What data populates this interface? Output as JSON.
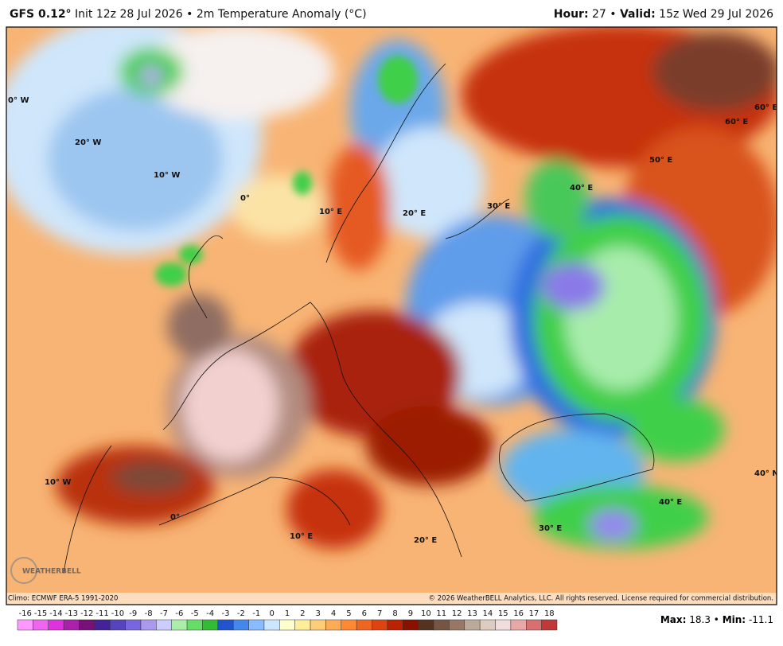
{
  "header": {
    "model": "GFS 0.12°",
    "info": "Init 12z 28 Jul 2026 • 2m Temperature Anomaly (°C)",
    "hour_label": "Hour:",
    "hour": "27 •",
    "valid_label": "Valid:",
    "valid": "15z Wed 29 Jul 2026"
  },
  "map": {
    "labels": [
      "0° W",
      "20° W",
      "10° W",
      "0°",
      "10° E",
      "20° E",
      "30° E",
      "40° E",
      "50° E",
      "60° E",
      "60° E",
      "40° N",
      "40° E",
      "30° E",
      "20° E",
      "10° E",
      "0°",
      "10° W"
    ],
    "watermark": "WEATHERBELL",
    "climo": "Climo: ECMWF ERA-5 1991-2020",
    "copyright": "© 2026 WeatherBELL Analytics, LLC. All rights reserved. License required for commercial distribution."
  },
  "colorbar": {
    "ticks": [
      -16,
      -15,
      -14,
      -13,
      -12,
      -11,
      -10,
      -9,
      -8,
      -7,
      -6,
      -5,
      -4,
      -3,
      -2,
      -1,
      0,
      1,
      2,
      3,
      4,
      5,
      6,
      7,
      8,
      9,
      10,
      11,
      12,
      13,
      14,
      15,
      16,
      17,
      18
    ],
    "colors": [
      "#ff99ff",
      "#ee66ee",
      "#dd33dd",
      "#aa22aa",
      "#771177",
      "#442299",
      "#5544bb",
      "#7766dd",
      "#aa99ee",
      "#ccccff",
      "#aaeeaa",
      "#66dd66",
      "#33bb33",
      "#2255cc",
      "#4488ee",
      "#88bbff",
      "#cce6ff",
      "#ffffcc",
      "#ffee99",
      "#ffcc77",
      "#ffaa55",
      "#ff8833",
      "#ee6622",
      "#dd4411",
      "#bb2200",
      "#881100",
      "#553322",
      "#775544",
      "#997766",
      "#bbaa99",
      "#ddccc0",
      "#f0dede",
      "#e8a8a8",
      "#d87070",
      "#c03838"
    ]
  },
  "stats": {
    "max_label": "Max:",
    "max": "18.3 •",
    "min_label": "Min:",
    "min": "-11.1"
  }
}
